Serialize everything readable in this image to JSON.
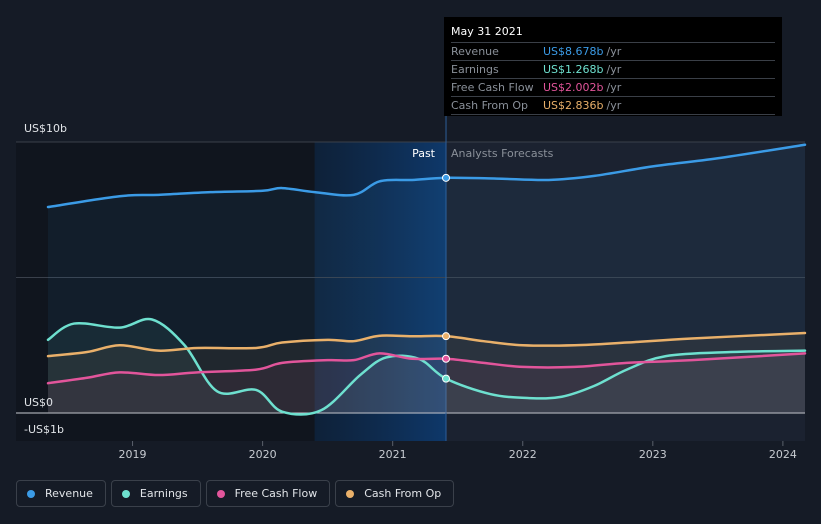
{
  "tooltip": {
    "date": "May 31 2021",
    "rows": [
      {
        "name": "Revenue",
        "value": "US$8.678b",
        "unit": "/yr",
        "color": "#3b9be6"
      },
      {
        "name": "Earnings",
        "value": "US$1.268b",
        "unit": "/yr",
        "color": "#6ee0cf"
      },
      {
        "name": "Free Cash Flow",
        "value": "US$2.002b",
        "unit": "/yr",
        "color": "#e2559b"
      },
      {
        "name": "Cash From Op",
        "value": "US$2.836b",
        "unit": "/yr",
        "color": "#e9b06a"
      }
    ]
  },
  "segments": {
    "past": "Past",
    "forecast": "Analysts Forecasts"
  },
  "legend": [
    {
      "label": "Revenue",
      "color": "#3b9be6"
    },
    {
      "label": "Earnings",
      "color": "#6ee0cf"
    },
    {
      "label": "Free Cash Flow",
      "color": "#e2559b"
    },
    {
      "label": "Cash From Op",
      "color": "#e9b06a"
    }
  ],
  "chart_data": {
    "type": "line",
    "y_tick_labels": [
      "US$10b",
      "US$0",
      "-US$1b"
    ],
    "ylim": [
      -1,
      10
    ],
    "xlim": [
      2018.35,
      2024.17
    ],
    "x_ticks": [
      2019,
      2020,
      2021,
      2022,
      2023,
      2024
    ],
    "x_tick_labels": [
      "2019",
      "2020",
      "2021",
      "2022",
      "2023",
      "2024"
    ],
    "divider_x": 2021.41,
    "grid": true,
    "series": [
      {
        "name": "Revenue",
        "color": "#3b9be6",
        "points": [
          [
            2018.35,
            7.6
          ],
          [
            2018.9,
            8.0
          ],
          [
            2019.2,
            8.05
          ],
          [
            2019.6,
            8.15
          ],
          [
            2020.0,
            8.2
          ],
          [
            2020.15,
            8.3
          ],
          [
            2020.4,
            8.15
          ],
          [
            2020.7,
            8.05
          ],
          [
            2020.9,
            8.55
          ],
          [
            2021.15,
            8.6
          ],
          [
            2021.41,
            8.678
          ],
          [
            2021.8,
            8.65
          ],
          [
            2022.2,
            8.6
          ],
          [
            2022.55,
            8.75
          ],
          [
            2023.0,
            9.1
          ],
          [
            2023.5,
            9.4
          ],
          [
            2024.17,
            9.9
          ]
        ]
      },
      {
        "name": "Earnings",
        "color": "#6ee0cf",
        "points": [
          [
            2018.35,
            2.7
          ],
          [
            2018.55,
            3.3
          ],
          [
            2018.9,
            3.15
          ],
          [
            2019.15,
            3.45
          ],
          [
            2019.4,
            2.5
          ],
          [
            2019.65,
            0.8
          ],
          [
            2019.95,
            0.85
          ],
          [
            2020.15,
            0.05
          ],
          [
            2020.45,
            0.1
          ],
          [
            2020.75,
            1.4
          ],
          [
            2020.95,
            2.05
          ],
          [
            2021.2,
            2.0
          ],
          [
            2021.41,
            1.268
          ],
          [
            2021.75,
            0.7
          ],
          [
            2022.05,
            0.55
          ],
          [
            2022.3,
            0.6
          ],
          [
            2022.55,
            1.0
          ],
          [
            2022.8,
            1.6
          ],
          [
            2023.1,
            2.1
          ],
          [
            2023.6,
            2.25
          ],
          [
            2024.17,
            2.3
          ]
        ]
      },
      {
        "name": "Free Cash Flow",
        "color": "#e2559b",
        "points": [
          [
            2018.35,
            1.1
          ],
          [
            2018.65,
            1.3
          ],
          [
            2018.9,
            1.5
          ],
          [
            2019.2,
            1.4
          ],
          [
            2019.5,
            1.5
          ],
          [
            2019.95,
            1.6
          ],
          [
            2020.15,
            1.85
          ],
          [
            2020.5,
            1.95
          ],
          [
            2020.7,
            1.95
          ],
          [
            2020.9,
            2.2
          ],
          [
            2021.15,
            2.0
          ],
          [
            2021.41,
            2.002
          ],
          [
            2021.7,
            1.85
          ],
          [
            2022.0,
            1.7
          ],
          [
            2022.4,
            1.7
          ],
          [
            2022.8,
            1.85
          ],
          [
            2023.3,
            1.95
          ],
          [
            2024.17,
            2.2
          ]
        ]
      },
      {
        "name": "Cash From Op",
        "color": "#e9b06a",
        "points": [
          [
            2018.35,
            2.1
          ],
          [
            2018.65,
            2.25
          ],
          [
            2018.9,
            2.5
          ],
          [
            2019.2,
            2.3
          ],
          [
            2019.5,
            2.4
          ],
          [
            2019.95,
            2.4
          ],
          [
            2020.15,
            2.6
          ],
          [
            2020.5,
            2.7
          ],
          [
            2020.7,
            2.65
          ],
          [
            2020.9,
            2.85
          ],
          [
            2021.15,
            2.83
          ],
          [
            2021.41,
            2.836
          ],
          [
            2021.7,
            2.65
          ],
          [
            2022.0,
            2.5
          ],
          [
            2022.4,
            2.5
          ],
          [
            2022.8,
            2.6
          ],
          [
            2023.3,
            2.75
          ],
          [
            2024.17,
            2.95
          ]
        ]
      }
    ]
  }
}
